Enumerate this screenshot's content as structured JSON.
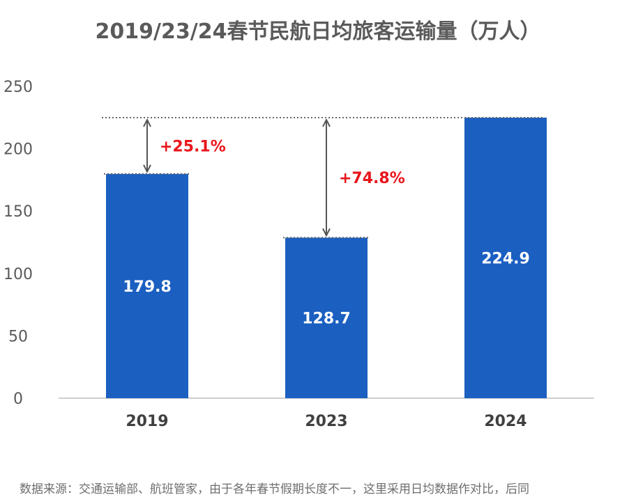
{
  "chart_data": {
    "type": "bar",
    "title": "2019/23/24春节民航日均旅客运输量（万人）",
    "categories": [
      "2019",
      "2023",
      "2024"
    ],
    "values": [
      179.8,
      128.7,
      224.9
    ],
    "ylim": [
      0,
      250
    ],
    "yticks": [
      0,
      50,
      100,
      150,
      200,
      250
    ],
    "grid": false,
    "bar_color": "#1b5fc1",
    "annotations": [
      {
        "from": "2019",
        "text": "+25.1%"
      },
      {
        "from": "2023",
        "text": "+74.8%"
      }
    ],
    "annotation_color": "#e8151b"
  },
  "source_note": "数据来源：交通运输部、航班管家，由于各年春节假期长度不一，这里采用日均数据作对比，后同"
}
